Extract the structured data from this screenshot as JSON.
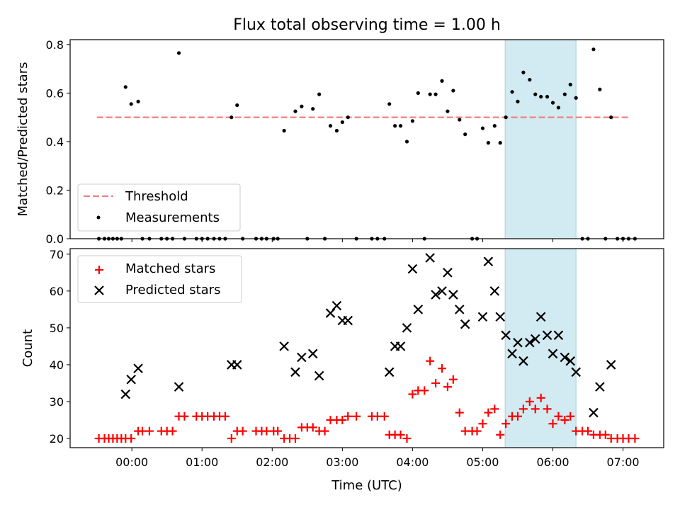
{
  "chart_data": [
    {
      "type": "scatter",
      "title": "Flux total observing time = 1.00 h",
      "xlabel": "",
      "ylabel": "Matched/Predicted stars",
      "ylim": [
        0,
        0.82
      ],
      "yticks": [
        "0.0",
        "0.2",
        "0.4",
        "0.6",
        "0.8"
      ],
      "ytick_values": [
        0.0,
        0.2,
        0.4,
        0.6,
        0.8
      ],
      "xlim_hours": [
        -0.88,
        7.58
      ],
      "xtick_values": [
        0,
        1,
        2,
        3,
        4,
        5,
        6,
        7
      ],
      "highlight_span_hours": [
        5.32,
        6.33
      ],
      "highlight_color": "#add8e6",
      "legend_position": "lower-left",
      "legend": [
        {
          "label": "Threshold",
          "color": "#f08080",
          "marker": "dashed-line"
        },
        {
          "label": "Measurements",
          "color": "#000000",
          "marker": "dot"
        }
      ],
      "threshold": {
        "name": "Threshold",
        "value": 0.5,
        "x_range_hours": [
          -0.5,
          7.1
        ],
        "color": "#f08080"
      },
      "series": [
        {
          "name": "Measurements",
          "color": "#000000",
          "points": [
            [
              -0.47,
              0
            ],
            [
              -0.39,
              0
            ],
            [
              -0.33,
              0
            ],
            [
              -0.27,
              0
            ],
            [
              -0.21,
              0
            ],
            [
              -0.15,
              0
            ],
            [
              -0.09,
              0.625
            ],
            [
              -0.01,
              0.555
            ],
            [
              0.09,
              0.565
            ],
            [
              0.15,
              0
            ],
            [
              0.25,
              0
            ],
            [
              0.42,
              0
            ],
            [
              0.5,
              0
            ],
            [
              0.58,
              0
            ],
            [
              0.67,
              0.765
            ],
            [
              0.75,
              0
            ],
            [
              0.92,
              0
            ],
            [
              1.0,
              0
            ],
            [
              1.08,
              0
            ],
            [
              1.17,
              0
            ],
            [
              1.25,
              0
            ],
            [
              1.33,
              0
            ],
            [
              1.42,
              0.5
            ],
            [
              1.5,
              0.55
            ],
            [
              1.58,
              0
            ],
            [
              1.77,
              0
            ],
            [
              1.85,
              0
            ],
            [
              1.92,
              0
            ],
            [
              2.02,
              0
            ],
            [
              2.08,
              0
            ],
            [
              2.17,
              0.445
            ],
            [
              2.33,
              0.525
            ],
            [
              2.42,
              0.545
            ],
            [
              2.5,
              0
            ],
            [
              2.58,
              0.535
            ],
            [
              2.67,
              0.595
            ],
            [
              2.75,
              0
            ],
            [
              2.83,
              0.465
            ],
            [
              2.92,
              0.445
            ],
            [
              3.0,
              0.48
            ],
            [
              3.08,
              0.5
            ],
            [
              3.2,
              0
            ],
            [
              3.42,
              0
            ],
            [
              3.5,
              0
            ],
            [
              3.6,
              0
            ],
            [
              3.67,
              0.555
            ],
            [
              3.75,
              0.465
            ],
            [
              3.83,
              0.465
            ],
            [
              3.92,
              0.4
            ],
            [
              4.0,
              0.485
            ],
            [
              4.08,
              0.6
            ],
            [
              4.17,
              0
            ],
            [
              4.25,
              0.595
            ],
            [
              4.33,
              0.595
            ],
            [
              4.42,
              0.65
            ],
            [
              4.5,
              0.525
            ],
            [
              4.58,
              0.61
            ],
            [
              4.67,
              0.49
            ],
            [
              4.75,
              0.43
            ],
            [
              4.85,
              0
            ],
            [
              4.92,
              0
            ],
            [
              5.0,
              0.455
            ],
            [
              5.08,
              0.395
            ],
            [
              5.17,
              0.465
            ],
            [
              5.25,
              0.395
            ],
            [
              5.33,
              0.5
            ],
            [
              5.42,
              0.605
            ],
            [
              5.5,
              0.565
            ],
            [
              5.58,
              0.685
            ],
            [
              5.67,
              0.655
            ],
            [
              5.75,
              0.595
            ],
            [
              5.83,
              0.585
            ],
            [
              5.92,
              0.585
            ],
            [
              6.0,
              0.56
            ],
            [
              6.08,
              0.54
            ],
            [
              6.17,
              0.595
            ],
            [
              6.25,
              0.635
            ],
            [
              6.33,
              0.58
            ],
            [
              6.42,
              0
            ],
            [
              6.5,
              0
            ],
            [
              6.58,
              0.78
            ],
            [
              6.67,
              0.615
            ],
            [
              6.75,
              0
            ],
            [
              6.83,
              0.5
            ],
            [
              6.92,
              0
            ],
            [
              7.0,
              0
            ],
            [
              7.08,
              0
            ],
            [
              7.17,
              0
            ]
          ]
        }
      ]
    },
    {
      "type": "scatter",
      "title": "",
      "xlabel": "Time (UTC)",
      "ylabel": "Count",
      "ylim": [
        17.5,
        71.5
      ],
      "yticks": [
        "20",
        "30",
        "40",
        "50",
        "60",
        "70"
      ],
      "ytick_values": [
        20,
        30,
        40,
        50,
        60,
        70
      ],
      "xlim_hours": [
        -0.88,
        7.58
      ],
      "xticks": [
        "00:00",
        "01:00",
        "02:00",
        "03:00",
        "04:00",
        "05:00",
        "06:00",
        "07:00"
      ],
      "xtick_values": [
        0,
        1,
        2,
        3,
        4,
        5,
        6,
        7
      ],
      "highlight_span_hours": [
        5.32,
        6.33
      ],
      "highlight_color": "#add8e6",
      "legend_position": "top-left",
      "legend": [
        {
          "label": "Matched stars",
          "color": "#ff0000",
          "marker": "plus"
        },
        {
          "label": "Predicted stars",
          "color": "#000000",
          "marker": "x"
        }
      ],
      "series": [
        {
          "name": "Matched stars",
          "color": "#ff0000",
          "marker": "plus",
          "points": [
            [
              -0.47,
              20
            ],
            [
              -0.39,
              20
            ],
            [
              -0.33,
              20
            ],
            [
              -0.27,
              20
            ],
            [
              -0.21,
              20
            ],
            [
              -0.15,
              20
            ],
            [
              -0.09,
              20
            ],
            [
              -0.01,
              20
            ],
            [
              0.09,
              22
            ],
            [
              0.15,
              22
            ],
            [
              0.25,
              22
            ],
            [
              0.42,
              22
            ],
            [
              0.5,
              22
            ],
            [
              0.58,
              22
            ],
            [
              0.67,
              26
            ],
            [
              0.75,
              26
            ],
            [
              0.92,
              26
            ],
            [
              1.0,
              26
            ],
            [
              1.08,
              26
            ],
            [
              1.17,
              26
            ],
            [
              1.25,
              26
            ],
            [
              1.33,
              26
            ],
            [
              1.42,
              20
            ],
            [
              1.5,
              22
            ],
            [
              1.58,
              22
            ],
            [
              1.77,
              22
            ],
            [
              1.85,
              22
            ],
            [
              1.92,
              22
            ],
            [
              2.02,
              22
            ],
            [
              2.08,
              22
            ],
            [
              2.17,
              20
            ],
            [
              2.25,
              20
            ],
            [
              2.33,
              20
            ],
            [
              2.42,
              23
            ],
            [
              2.5,
              23
            ],
            [
              2.58,
              23
            ],
            [
              2.67,
              22
            ],
            [
              2.75,
              22
            ],
            [
              2.83,
              25
            ],
            [
              2.92,
              25
            ],
            [
              3.0,
              25
            ],
            [
              3.08,
              26
            ],
            [
              3.2,
              26
            ],
            [
              3.42,
              26
            ],
            [
              3.5,
              26
            ],
            [
              3.6,
              26
            ],
            [
              3.67,
              21
            ],
            [
              3.75,
              21
            ],
            [
              3.83,
              21
            ],
            [
              3.92,
              20
            ],
            [
              4.0,
              32
            ],
            [
              4.08,
              33
            ],
            [
              4.17,
              33
            ],
            [
              4.25,
              41
            ],
            [
              4.33,
              35
            ],
            [
              4.42,
              39
            ],
            [
              4.5,
              34
            ],
            [
              4.58,
              36
            ],
            [
              4.67,
              27
            ],
            [
              4.75,
              22
            ],
            [
              4.85,
              22
            ],
            [
              4.92,
              22
            ],
            [
              5.0,
              24
            ],
            [
              5.08,
              27
            ],
            [
              5.17,
              28
            ],
            [
              5.25,
              21
            ],
            [
              5.33,
              24
            ],
            [
              5.42,
              26
            ],
            [
              5.5,
              26
            ],
            [
              5.58,
              28
            ],
            [
              5.67,
              30
            ],
            [
              5.75,
              28
            ],
            [
              5.83,
              31
            ],
            [
              5.92,
              28
            ],
            [
              6.0,
              24
            ],
            [
              6.08,
              26
            ],
            [
              6.17,
              25
            ],
            [
              6.25,
              26
            ],
            [
              6.33,
              22
            ],
            [
              6.42,
              22
            ],
            [
              6.5,
              22
            ],
            [
              6.58,
              21
            ],
            [
              6.67,
              21
            ],
            [
              6.75,
              21
            ],
            [
              6.83,
              20
            ],
            [
              6.92,
              20
            ],
            [
              7.0,
              20
            ],
            [
              7.08,
              20
            ],
            [
              7.17,
              20
            ]
          ]
        },
        {
          "name": "Predicted stars",
          "color": "#000000",
          "marker": "x",
          "points": [
            [
              -0.09,
              32
            ],
            [
              -0.01,
              36
            ],
            [
              0.09,
              39
            ],
            [
              0.67,
              34
            ],
            [
              1.42,
              40
            ],
            [
              1.5,
              40
            ],
            [
              2.17,
              45
            ],
            [
              2.33,
              38
            ],
            [
              2.42,
              42
            ],
            [
              2.58,
              43
            ],
            [
              2.67,
              37
            ],
            [
              2.83,
              54
            ],
            [
              2.92,
              56
            ],
            [
              3.0,
              52
            ],
            [
              3.08,
              52
            ],
            [
              3.67,
              38
            ],
            [
              3.75,
              45
            ],
            [
              3.83,
              45
            ],
            [
              3.92,
              50
            ],
            [
              4.0,
              66
            ],
            [
              4.08,
              55
            ],
            [
              4.25,
              69
            ],
            [
              4.33,
              59
            ],
            [
              4.42,
              60
            ],
            [
              4.5,
              65
            ],
            [
              4.58,
              59
            ],
            [
              4.67,
              55
            ],
            [
              4.75,
              51
            ],
            [
              5.0,
              53
            ],
            [
              5.08,
              68
            ],
            [
              5.17,
              60
            ],
            [
              5.25,
              53
            ],
            [
              5.33,
              48
            ],
            [
              5.42,
              43
            ],
            [
              5.5,
              46
            ],
            [
              5.58,
              41
            ],
            [
              5.67,
              46
            ],
            [
              5.75,
              47
            ],
            [
              5.83,
              53
            ],
            [
              5.92,
              48
            ],
            [
              6.0,
              43
            ],
            [
              6.08,
              48
            ],
            [
              6.17,
              42
            ],
            [
              6.25,
              41
            ],
            [
              6.33,
              38
            ],
            [
              6.58,
              27
            ],
            [
              6.67,
              34
            ],
            [
              6.83,
              40
            ]
          ]
        }
      ]
    }
  ]
}
